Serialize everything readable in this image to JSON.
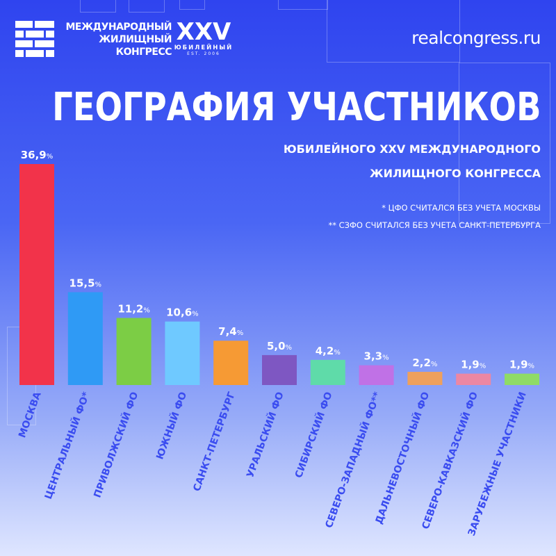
{
  "header": {
    "logo": {
      "lines": [
        "МЕЖДУНАРОДНЫЙ",
        "ЖИЛИЩНЫЙ",
        "КОНГРЕСС"
      ],
      "edition": "XXV",
      "edition_label": "ЮБИЛЕЙНЫЙ",
      "est": "EST. 2006"
    },
    "website": "realcongress.ru"
  },
  "title": "ГЕОГРАФИЯ УЧАСТНИКОВ",
  "subtitle_line1": "ЮБИЛЕЙНОГО XXV МЕЖДУНАРОДНОГО",
  "subtitle_line2": "ЖИЛИЩНОГО КОНГРЕССА",
  "notes": [
    "* ЦФО СЧИТАЛСЯ БЕЗ УЧЕТА МОСКВЫ",
    "** СЗФО СЧИТАЛСЯ БЕЗ УЧЕТА САНКТ-ПЕТЕРБУРГА"
  ],
  "colors": {
    "bg_top": "#2f44ef",
    "bg_bottom": "#dfe6ff",
    "text": "#ffffff"
  },
  "chart_data": {
    "type": "bar",
    "title": "ГЕОГРАФИЯ УЧАСТНИКОВ",
    "categories": [
      "МОСКВА",
      "ЦЕНТРАЛЬНЫЙ ФО*",
      "ПРИВОЛЖСКИЙ ФО",
      "ЮЖНЫЙ ФО",
      "САНКТ-ПЕТЕРБУРГ",
      "УРАЛЬСКИЙ ФО",
      "СИБИРСКИЙ ФО",
      "СЕВЕРО-ЗАПАДНЫЙ ФО**",
      "ДАЛЬНЕВОСТОЧНЫЙ ФО",
      "СЕВЕРО-КАВКАЗСКИЙ ФО",
      "ЗАРУБЕЖНЫЕ УЧАСТНИКИ"
    ],
    "values": [
      36.9,
      15.5,
      11.2,
      10.6,
      7.4,
      5.0,
      4.2,
      3.3,
      2.2,
      1.9,
      1.9
    ],
    "value_labels": [
      "36,9",
      "15,5",
      "11,2",
      "10,6",
      "7,4",
      "5,0",
      "4,2",
      "3,3",
      "2,2",
      "1,9",
      "1,9"
    ],
    "unit": "%",
    "bar_colors": [
      "#f2334a",
      "#2f9af5",
      "#7ccd45",
      "#6fc9ff",
      "#f69a34",
      "#7e57c2",
      "#5fdba9",
      "#c071e6",
      "#eea05d",
      "#ec87a3",
      "#8fdb66"
    ],
    "ylim": [
      0,
      40
    ],
    "grid": false,
    "legend": "none"
  }
}
